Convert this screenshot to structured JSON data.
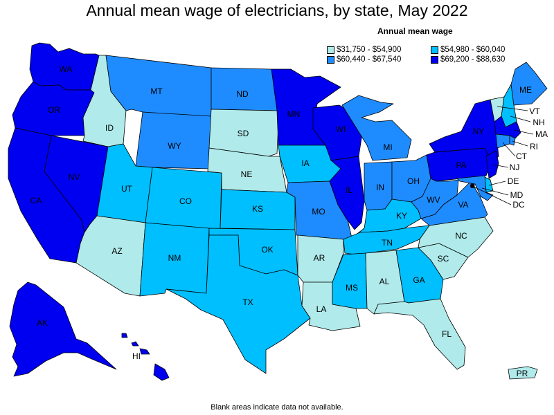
{
  "title": "Annual mean wage of electricians, by state, May 2022",
  "legend": {
    "title": "Annual mean wage",
    "bins": [
      {
        "label": "$31,750 - $54,900",
        "color": "#b0eaea"
      },
      {
        "label": "$54,980 - $60,040",
        "color": "#00bfff"
      },
      {
        "label": "$60,440 - $67,540",
        "color": "#1e8cff"
      },
      {
        "label": "$69,200 - $88,630",
        "color": "#0000f0"
      }
    ]
  },
  "footnote": "Blank areas indicate data not available.",
  "states": {
    "WA": {
      "label": "WA",
      "bin": 3
    },
    "OR": {
      "label": "OR",
      "bin": 3
    },
    "CA": {
      "label": "CA",
      "bin": 3
    },
    "NV": {
      "label": "NV",
      "bin": 3
    },
    "ID": {
      "label": "ID",
      "bin": 0
    },
    "MT": {
      "label": "MT",
      "bin": 2
    },
    "WY": {
      "label": "WY",
      "bin": 2
    },
    "UT": {
      "label": "UT",
      "bin": 1
    },
    "AZ": {
      "label": "AZ",
      "bin": 0
    },
    "CO": {
      "label": "CO",
      "bin": 1
    },
    "NM": {
      "label": "NM",
      "bin": 1
    },
    "ND": {
      "label": "ND",
      "bin": 2
    },
    "SD": {
      "label": "SD",
      "bin": 0
    },
    "NE": {
      "label": "NE",
      "bin": 0
    },
    "KS": {
      "label": "KS",
      "bin": 1
    },
    "OK": {
      "label": "OK",
      "bin": 1
    },
    "TX": {
      "label": "TX",
      "bin": 1
    },
    "MN": {
      "label": "MN",
      "bin": 3
    },
    "IA": {
      "label": "IA",
      "bin": 1
    },
    "MO": {
      "label": "MO",
      "bin": 2
    },
    "AR": {
      "label": "AR",
      "bin": 0
    },
    "LA": {
      "label": "LA",
      "bin": 0
    },
    "WI": {
      "label": "WI",
      "bin": 3
    },
    "IL": {
      "label": "IL",
      "bin": 3
    },
    "MI": {
      "label": "MI",
      "bin": 2
    },
    "IN": {
      "label": "IN",
      "bin": 2
    },
    "OH": {
      "label": "OH",
      "bin": 2
    },
    "KY": {
      "label": "KY",
      "bin": 1
    },
    "TN": {
      "label": "TN",
      "bin": 1
    },
    "MS": {
      "label": "MS",
      "bin": 1
    },
    "AL": {
      "label": "AL",
      "bin": 0
    },
    "GA": {
      "label": "GA",
      "bin": 1
    },
    "FL": {
      "label": "FL",
      "bin": 0
    },
    "SC": {
      "label": "SC",
      "bin": 0
    },
    "NC": {
      "label": "NC",
      "bin": 0
    },
    "VA": {
      "label": "VA",
      "bin": 2
    },
    "WV": {
      "label": "WV",
      "bin": 2
    },
    "PA": {
      "label": "PA",
      "bin": 3
    },
    "NY": {
      "label": "NY",
      "bin": 3
    },
    "VT": {
      "label": "VT",
      "bin": 0
    },
    "NH": {
      "label": "NH",
      "bin": 1
    },
    "ME": {
      "label": "ME",
      "bin": 2
    },
    "MA": {
      "label": "MA",
      "bin": 3
    },
    "RI": {
      "label": "RI",
      "bin": 2
    },
    "CT": {
      "label": "CT",
      "bin": 2
    },
    "NJ": {
      "label": "NJ",
      "bin": 3
    },
    "DE": {
      "label": "DE",
      "bin": 1
    },
    "MD": {
      "label": "MD",
      "bin": 2
    },
    "DC": {
      "label": "DC",
      "bin": 3
    },
    "AK": {
      "label": "AK",
      "bin": 3
    },
    "HI": {
      "label": "HI",
      "bin": 3
    },
    "PR": {
      "label": "PR",
      "bin": 0
    }
  }
}
